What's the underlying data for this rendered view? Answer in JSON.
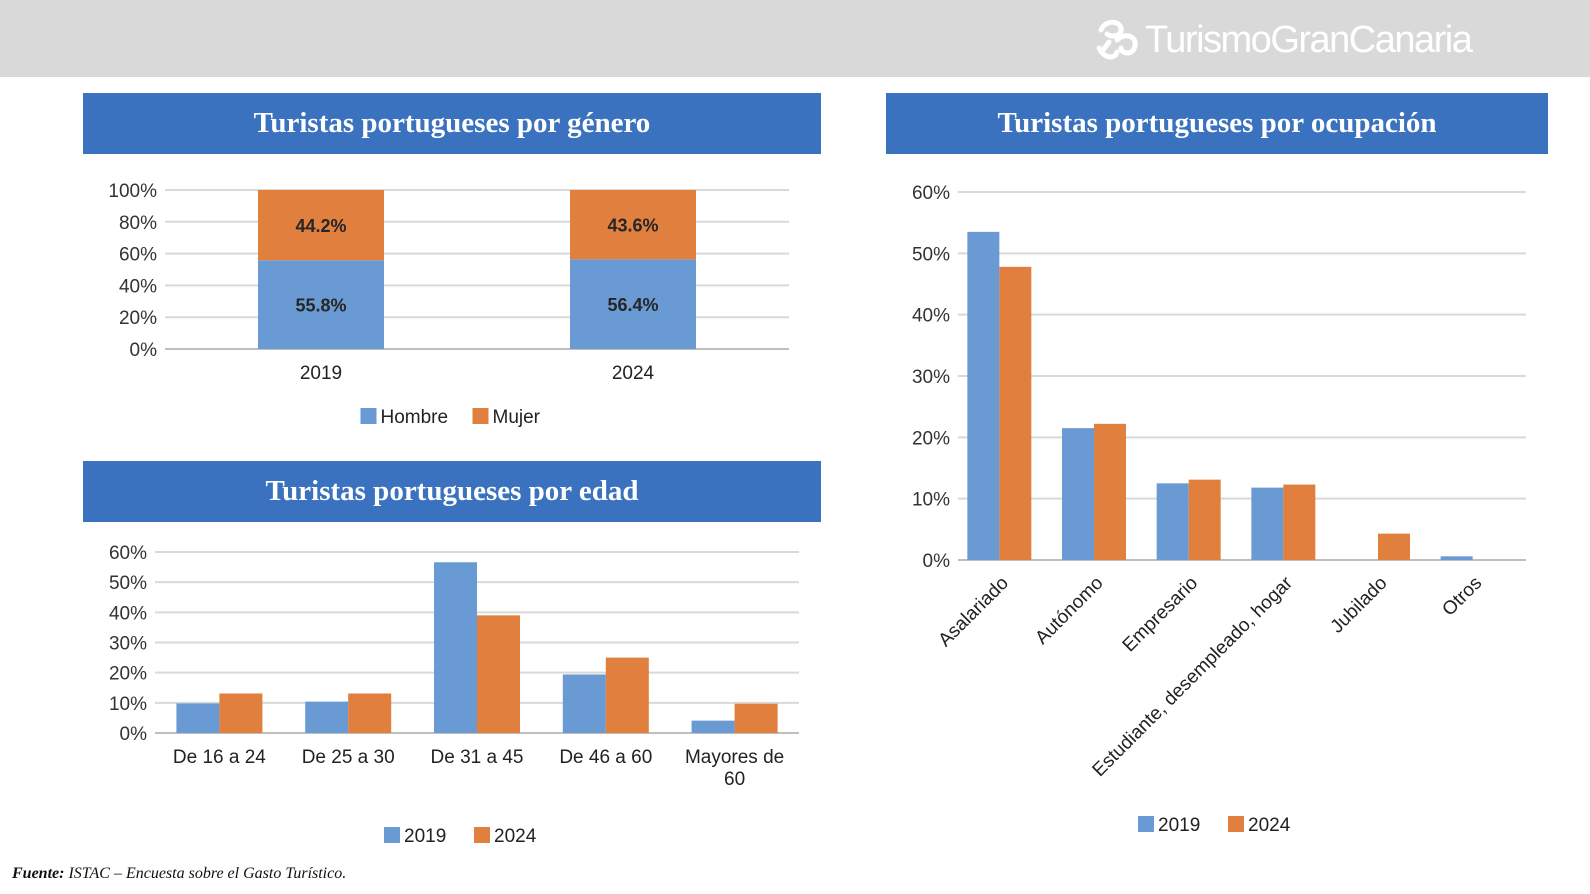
{
  "header": {
    "logo_text": "TurismoGranCanaria",
    "logo_icon": "gran-canaria-swirl-icon"
  },
  "colors": {
    "series_2019": "#6a9ad3",
    "series_2024": "#e07f3e",
    "title_bg": "#3a72c0",
    "topbar": "#d9d9d9"
  },
  "chart_data": [
    {
      "id": "genero",
      "type": "bar",
      "stacked": true,
      "title": "Turistas portugueses por género",
      "categories": [
        "2019",
        "2024"
      ],
      "series": [
        {
          "name": "Hombre",
          "values": [
            55.8,
            56.4
          ],
          "labels": [
            "55.8%",
            "56.4%"
          ]
        },
        {
          "name": "Mujer",
          "values": [
            44.2,
            43.6
          ],
          "labels": [
            "44.2%",
            "43.6%"
          ]
        }
      ],
      "yticks": [
        "0%",
        "20%",
        "40%",
        "60%",
        "80%",
        "100%"
      ],
      "ylim": [
        0,
        100
      ],
      "legend": "bottom"
    },
    {
      "id": "edad",
      "type": "bar",
      "title": "Turistas portugueses por edad",
      "categories": [
        "De 16 a 24",
        "De 25 a 30",
        "De 31 a 45",
        "De 46 a 60",
        "Mayores de 60"
      ],
      "series": [
        {
          "name": "2019",
          "values": [
            9.8,
            10.4,
            56.6,
            19.4,
            4.1
          ]
        },
        {
          "name": "2024",
          "values": [
            13.1,
            13.1,
            39.0,
            25.0,
            9.7
          ]
        }
      ],
      "yticks": [
        "0%",
        "10%",
        "20%",
        "30%",
        "40%",
        "50%",
        "60%"
      ],
      "ylim": [
        0,
        60
      ],
      "legend": "bottom"
    },
    {
      "id": "ocupacion",
      "type": "bar",
      "title": "Turistas portugueses por ocupación",
      "categories": [
        "Asalariado",
        "Autónomo",
        "Empresario",
        "Estudiante, desempleado, hogar",
        "Jubilado",
        "Otros"
      ],
      "series": [
        {
          "name": "2019",
          "values": [
            53.5,
            21.5,
            12.5,
            11.8,
            0,
            0.6
          ]
        },
        {
          "name": "2024",
          "values": [
            47.8,
            22.2,
            13.1,
            12.3,
            4.3,
            0
          ]
        }
      ],
      "yticks": [
        "0%",
        "10%",
        "20%",
        "30%",
        "40%",
        "50%",
        "60%"
      ],
      "ylim": [
        0,
        60
      ],
      "legend": "bottom"
    }
  ],
  "footer": {
    "label": "Fuente:",
    "text": "ISTAC – Encuesta sobre el Gasto Turístico."
  }
}
